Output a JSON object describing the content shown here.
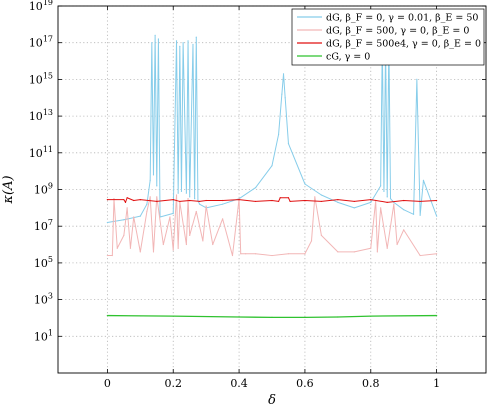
{
  "chart_data": {
    "type": "line",
    "xlabel": "δ",
    "ylabel": "κ(A)",
    "xlim": [
      -0.15,
      1.15
    ],
    "ylim": [
      0.1,
      1e+19
    ],
    "yscale": "log",
    "grid": true,
    "legend_position": "top-right",
    "xticks": [
      {
        "value": 0,
        "label": "0"
      },
      {
        "value": 0.2,
        "label": "0.2"
      },
      {
        "value": 0.4,
        "label": "0.4"
      },
      {
        "value": 0.6,
        "label": "0.6"
      },
      {
        "value": 0.8,
        "label": "0.8"
      },
      {
        "value": 1,
        "label": "1"
      }
    ],
    "yticks": [
      {
        "exp": 1,
        "label": "10^1"
      },
      {
        "exp": 3,
        "label": "10^3"
      },
      {
        "exp": 5,
        "label": "10^5"
      },
      {
        "exp": 7,
        "label": "10^7"
      },
      {
        "exp": 9,
        "label": "10^9"
      },
      {
        "exp": 11,
        "label": "10^11"
      },
      {
        "exp": 13,
        "label": "10^13"
      },
      {
        "exp": 15,
        "label": "10^15"
      },
      {
        "exp": 17,
        "label": "10^17"
      },
      {
        "exp": 19,
        "label": "10^19"
      }
    ],
    "series": [
      {
        "name": "dG, β_F = 0, γ = 0.01, β_E = 50",
        "color": "#87cdea",
        "x": [
          0,
          0.05,
          0.1,
          0.12,
          0.13,
          0.135,
          0.14,
          0.145,
          0.15,
          0.155,
          0.16,
          0.2,
          0.21,
          0.215,
          0.22,
          0.225,
          0.23,
          0.24,
          0.245,
          0.25,
          0.26,
          0.265,
          0.27,
          0.275,
          0.28,
          0.3,
          0.35,
          0.4,
          0.45,
          0.5,
          0.52,
          0.53,
          0.535,
          0.54,
          0.55,
          0.6,
          0.65,
          0.7,
          0.75,
          0.8,
          0.83,
          0.835,
          0.84,
          0.845,
          0.85,
          0.855,
          0.86,
          0.87,
          0.9,
          0.93,
          0.94,
          0.95,
          0.96,
          1.0
        ],
        "log10": [
          7.2,
          7.35,
          7.55,
          8.2,
          9.5,
          17.0,
          9.8,
          17.4,
          9.2,
          17.2,
          7.5,
          7.7,
          17.1,
          8.8,
          16.8,
          8.9,
          17.0,
          8.8,
          17.1,
          8.6,
          16.9,
          8.5,
          17.3,
          8.4,
          8.2,
          8.0,
          8.2,
          8.5,
          9.1,
          10.3,
          12.0,
          14.2,
          15.3,
          14.0,
          11.5,
          9.3,
          8.7,
          8.3,
          8.0,
          8.3,
          9.2,
          17.0,
          8.9,
          16.8,
          8.6,
          17.1,
          8.5,
          8.3,
          7.9,
          7.65,
          15.0,
          7.6,
          9.5,
          7.55
        ]
      },
      {
        "name": "dG, β_F = 500, γ = 0, β_E = 0",
        "color": "#f2b6b6",
        "x": [
          0,
          0.015,
          0.02,
          0.03,
          0.05,
          0.06,
          0.07,
          0.08,
          0.1,
          0.12,
          0.13,
          0.14,
          0.15,
          0.17,
          0.19,
          0.2,
          0.21,
          0.215,
          0.22,
          0.24,
          0.245,
          0.25,
          0.27,
          0.29,
          0.3,
          0.32,
          0.35,
          0.38,
          0.4,
          0.405,
          0.42,
          0.45,
          0.5,
          0.55,
          0.6,
          0.62,
          0.63,
          0.65,
          0.7,
          0.75,
          0.8,
          0.815,
          0.82,
          0.83,
          0.85,
          0.87,
          0.88,
          0.9,
          0.95,
          1.0
        ],
        "log10": [
          5.4,
          5.4,
          8.5,
          5.8,
          6.5,
          8.0,
          5.8,
          7.5,
          5.6,
          7.8,
          8.6,
          5.6,
          8.6,
          6.0,
          7.5,
          5.7,
          8.7,
          5.8,
          8.3,
          6.0,
          8.5,
          6.5,
          7.8,
          6.2,
          8.1,
          6.0,
          7.4,
          5.4,
          8.5,
          5.5,
          5.5,
          5.5,
          5.4,
          5.5,
          5.5,
          6.2,
          8.6,
          6.5,
          5.6,
          5.6,
          5.8,
          8.4,
          5.6,
          8.0,
          5.8,
          8.2,
          6.0,
          6.8,
          5.4,
          5.5
        ]
      },
      {
        "name": "dG, β_F = 500e4, γ = 0, β_E = 0",
        "color": "#e01010",
        "x": [
          0,
          0.05,
          0.055,
          0.06,
          0.08,
          0.1,
          0.15,
          0.2,
          0.22,
          0.25,
          0.28,
          0.3,
          0.35,
          0.4,
          0.45,
          0.5,
          0.52,
          0.525,
          0.55,
          0.555,
          0.6,
          0.65,
          0.7,
          0.75,
          0.8,
          0.85,
          0.9,
          0.95,
          1.0
        ],
        "log10": [
          8.45,
          8.45,
          8.3,
          8.55,
          8.4,
          8.45,
          8.35,
          8.45,
          8.35,
          8.4,
          8.35,
          8.4,
          8.4,
          8.45,
          8.35,
          8.4,
          8.35,
          8.55,
          8.55,
          8.35,
          8.4,
          8.35,
          8.45,
          8.35,
          8.45,
          8.3,
          8.4,
          8.35,
          8.4
        ]
      },
      {
        "name": "cG, γ = 0",
        "color": "#2fc22f",
        "x": [
          0,
          0.2,
          0.4,
          0.5,
          0.6,
          0.7,
          0.8,
          1.0
        ],
        "log10": [
          2.13,
          2.1,
          2.05,
          2.03,
          2.03,
          2.05,
          2.1,
          2.13
        ]
      }
    ]
  }
}
